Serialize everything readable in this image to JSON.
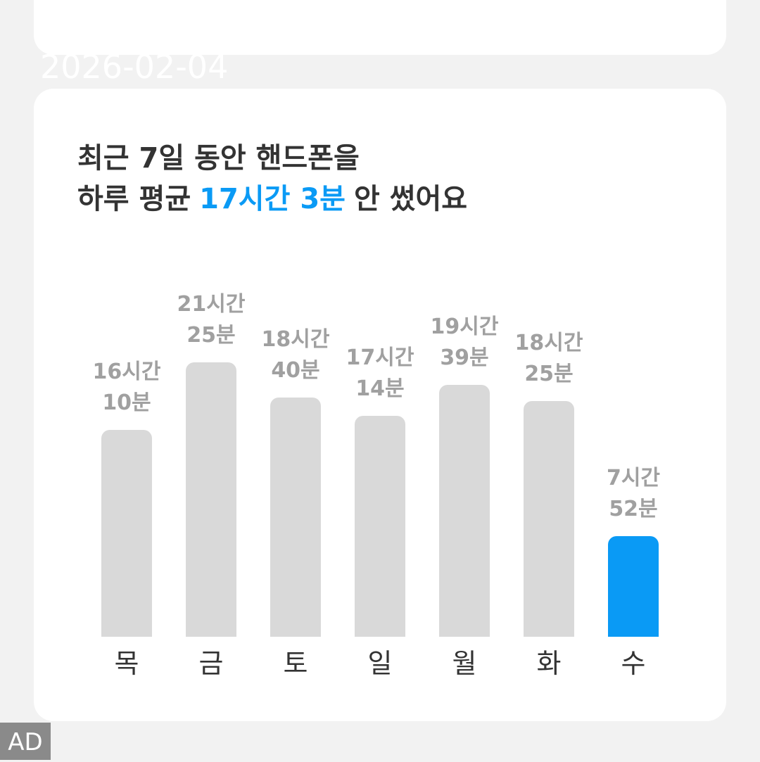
{
  "date": "2026-02-04",
  "ad": "AD",
  "chart_data": {
    "type": "bar",
    "title_parts": [
      "최근 7일 동안 핸드폰을",
      "하루 평균",
      "17시간 3분",
      "안 썼어요"
    ],
    "highlight_color": "#0a9af5",
    "categories": [
      "목",
      "금",
      "토",
      "일",
      "월",
      "화",
      "수"
    ],
    "values": [
      970,
      1285,
      1120,
      1034,
      1179,
      1105,
      472
    ],
    "value_labels": [
      "16시간 10분",
      "21시간 25분",
      "18시간 40분",
      "17시간 14분",
      "19시간 39분",
      "18시간 25분",
      "7시간 52분"
    ],
    "colors": [
      "#d9d9d9",
      "#d9d9d9",
      "#d9d9d9",
      "#d9d9d9",
      "#d9d9d9",
      "#d9d9d9",
      "#0a9af5"
    ]
  }
}
